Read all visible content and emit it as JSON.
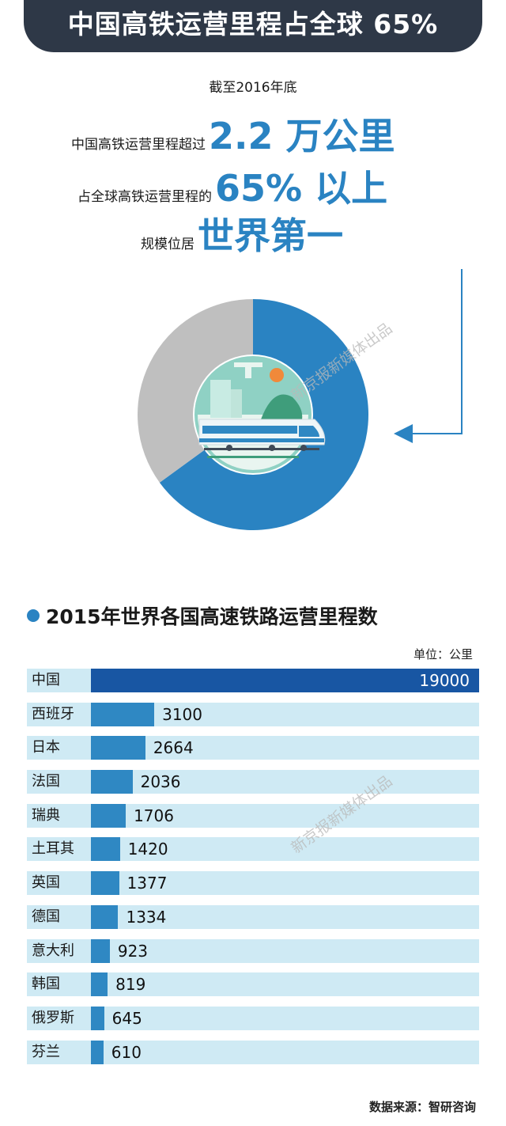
{
  "header": {
    "title": "中国高铁运营里程占全球 65%"
  },
  "summary": {
    "line0": "截至2016年底",
    "line1_label": "中国高铁运营里程超过",
    "line1_value": "2.2 万公里",
    "line2_label": "占全球高铁运营里程的",
    "line2_value": "65% 以上",
    "line3_label": "规模位居",
    "line3_value": "世界第一"
  },
  "watermark": "新京报新媒体出品",
  "colors": {
    "accent": "#2a83c2",
    "dark_bar": "#1856a3",
    "bar": "#2f88c3",
    "row_bg": "#cfeaf4",
    "pie_rest": "#bfbfbf",
    "banner": "#2e3847"
  },
  "chart_data": [
    {
      "type": "pie",
      "categories": [
        "中国",
        ""
      ],
      "values": [
        65,
        35
      ]
    },
    {
      "type": "bar",
      "orientation": "horizontal",
      "title": "2015年世界各国高速铁路运营里程数",
      "unit_label": "单位：公里",
      "categories": [
        "中国",
        "西班牙",
        "日本",
        "法国",
        "瑞典",
        "土耳其",
        "英国",
        "德国",
        "意大利",
        "韩国",
        "俄罗斯",
        "芬兰"
      ],
      "values": [
        19000,
        3100,
        2664,
        2036,
        1706,
        1420,
        1377,
        1334,
        923,
        819,
        645,
        610
      ],
      "xlim": [
        0,
        19000
      ],
      "source": "数据来源：智研咨询"
    }
  ]
}
